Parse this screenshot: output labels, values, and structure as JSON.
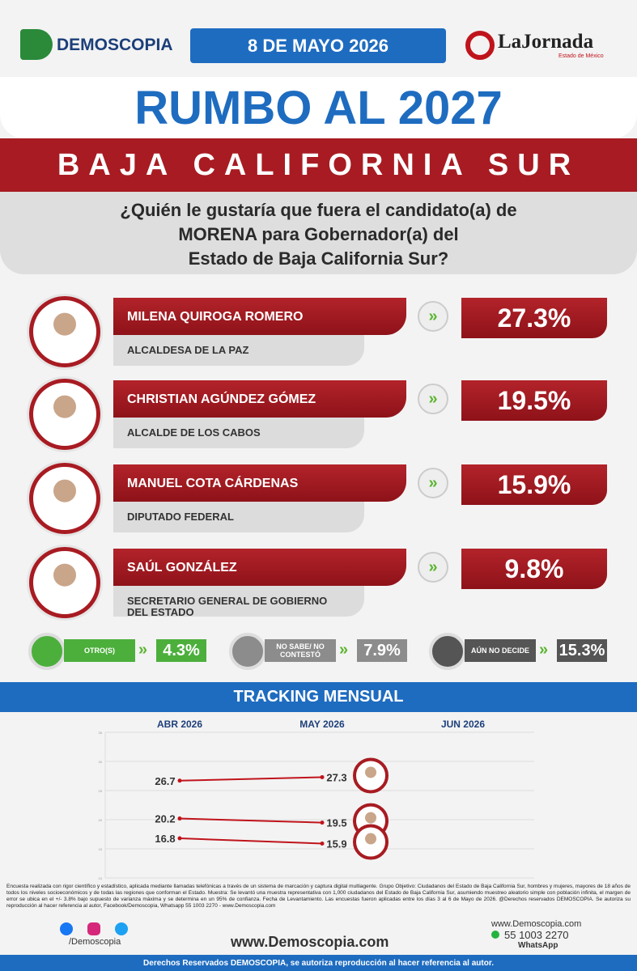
{
  "header": {
    "brand": "DEMOSCOPIA",
    "date": "8 DE MAYO 2026",
    "partner": "LaJornada",
    "partner_sub": "Estado de México"
  },
  "title": "RUMBO AL 2027",
  "subtitle": "BAJA CALIFORNIA SUR",
  "question": [
    "¿Quién le gustaría que fuera el candidato(a) de",
    "MORENA para Gobernador(a) del",
    "Estado de Baja California Sur?"
  ],
  "candidates": [
    {
      "name": "MILENA QUIROGA ROMERO",
      "role": "ALCALDESA DE LA PAZ",
      "result": "27.3%"
    },
    {
      "name": "CHRISTIAN AGÚNDEZ GÓMEZ",
      "role": "ALCALDE DE LOS CABOS",
      "result": "19.5%"
    },
    {
      "name": "MANUEL COTA CÁRDENAS",
      "role": "DIPUTADO FEDERAL",
      "result": "15.9%"
    },
    {
      "name": "SAÚL GONZÁLEZ",
      "role": "SECRETARIO GENERAL DE GOBIERNO DEL ESTADO",
      "result": "9.8%"
    }
  ],
  "others": [
    {
      "label": "OTRO(S)",
      "result": "4.3%",
      "color": "#4caf3c"
    },
    {
      "label": "NO SABE/ NO CONTESTÓ",
      "result": "7.9%",
      "color": "#8c8c8c"
    },
    {
      "label": "AÚN NO DECIDE",
      "result": "15.3%",
      "color": "#555555"
    }
  ],
  "tracking_title": "TRACKING MENSUAL",
  "chart_data": {
    "type": "line",
    "categories": [
      "ABR 2026",
      "MAY 2026",
      "JUN 2026"
    ],
    "series": [
      {
        "color": "#c0141c",
        "values": [
          26.7,
          27.3,
          null
        ]
      },
      {
        "color": "#c0141c",
        "values": [
          20.2,
          19.5,
          null
        ]
      },
      {
        "color": "#c0141c",
        "values": [
          16.8,
          15.9,
          null
        ]
      }
    ],
    "ylim": [
      10,
      35
    ],
    "yticks": [
      10,
      15,
      20,
      25,
      30,
      35
    ],
    "grid": true
  },
  "footer": {
    "methodology": "Encuesta realizada con rigor científico y estadístico, aplicada mediante llamadas telefónicas a través de un sistema de marcación y captura digital multiagente. Grupo Objetivo: Ciudadanos del Estado de Baja California Sur, hombres y mujeres, mayores de 18 años de todos los niveles socioeconómicos y de todas las regiones que conforman el Estado. Muestra: Se levantó una muestra representativa con 1,000 ciudadanos del Estado de Baja California Sur, asumiendo muestreo aleatorio simple con población infinita, el margen de error se ubica en el +/- 3.8% bajo supuesto de varianza máxima y se determina en un 95% de confianza. Fecha de Levantamiento. Las encuestas fueron aplicadas entre los días 3 al 6 de Mayo de 2026. @Derechos reservados DEMOSCOPIA. Se autoriza su reproducción al hacer referencia al autor, Facebook/Demoscopia, Whatsapp 55 1003 2270 - www.Demoscopia.com",
    "social": "/Demoscopia",
    "website": "www.Demoscopia.com",
    "contact_site": "www.Demoscopia.com",
    "phone": "55 1003 2270",
    "whatsapp": "WhatsApp",
    "rights": "Derechos Reservados DEMOSCOPIA, se autoriza reproducción al hacer referencia al autor."
  }
}
